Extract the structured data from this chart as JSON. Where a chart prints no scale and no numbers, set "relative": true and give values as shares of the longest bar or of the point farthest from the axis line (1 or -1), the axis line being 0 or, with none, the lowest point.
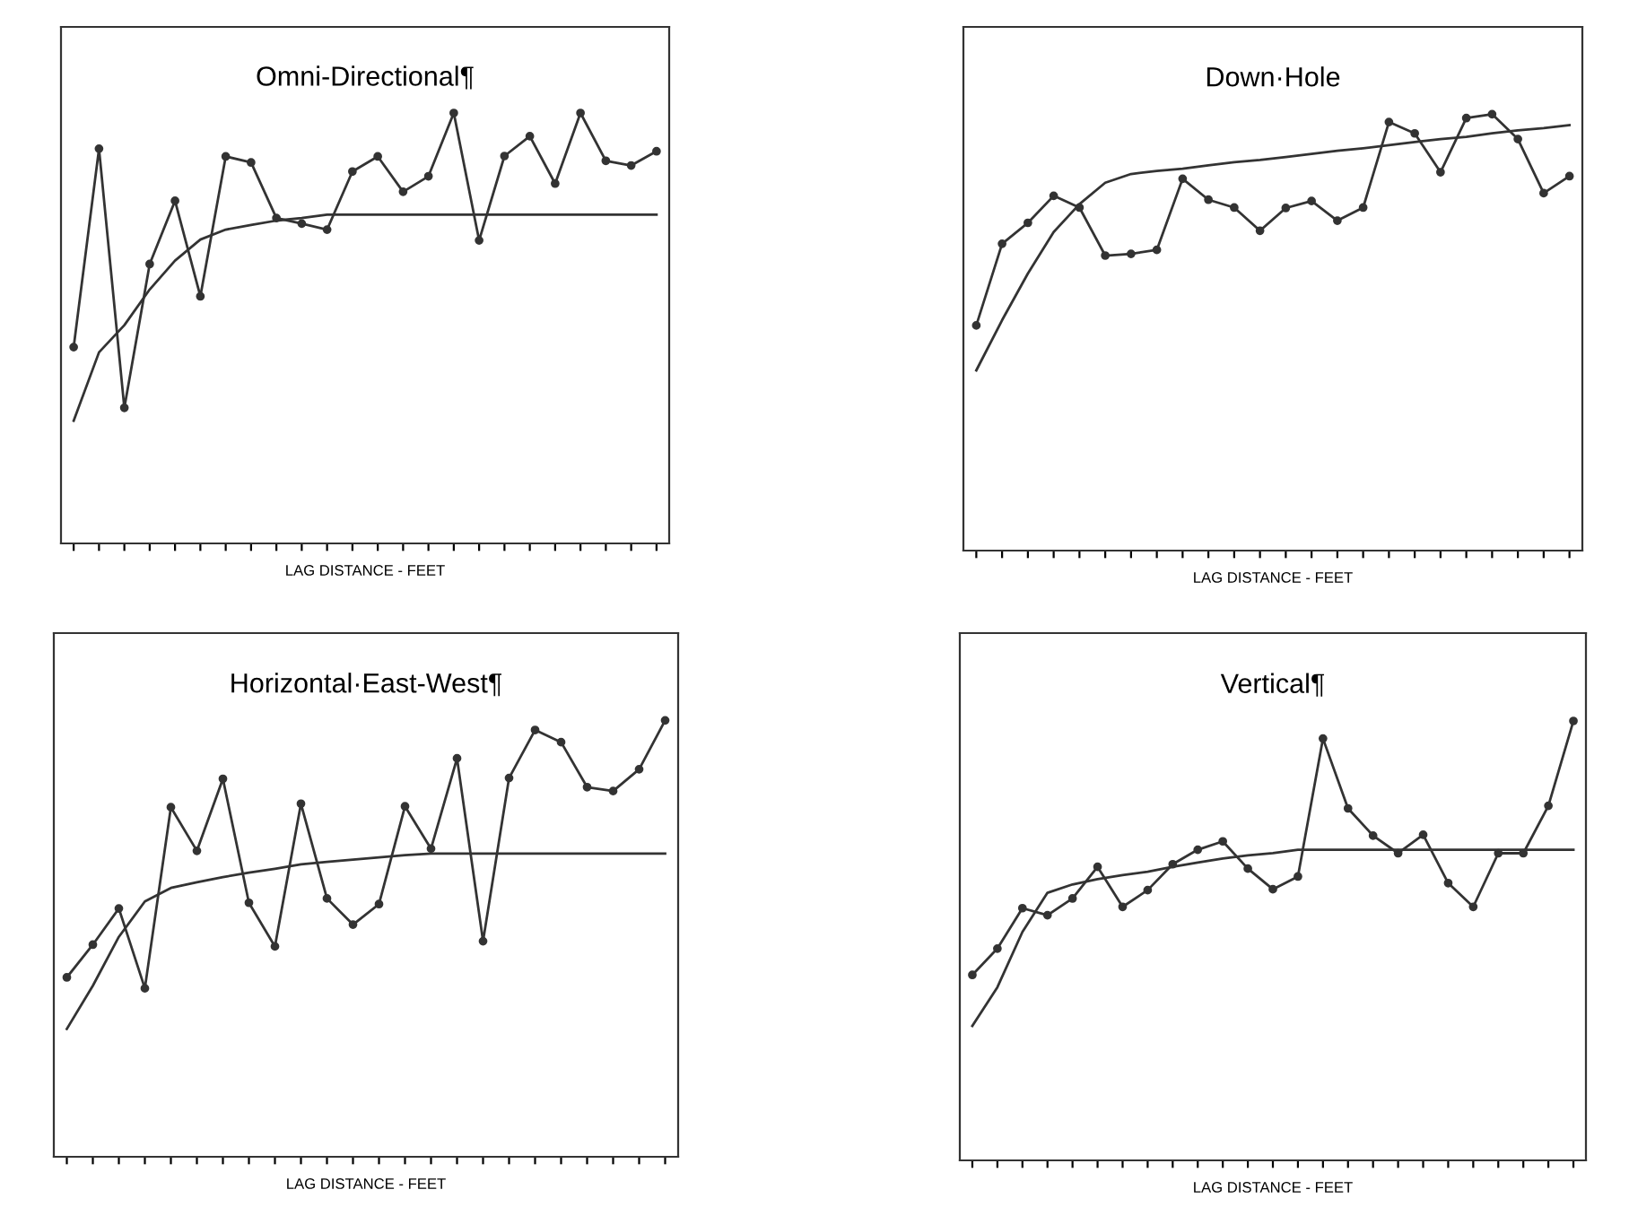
{
  "chart_data": [
    {
      "type": "line",
      "title": "Omni-Directional¶",
      "xlabel": "LAG DISTANCE - FEET",
      "relative": true,
      "categories": [
        null,
        null,
        null,
        null,
        null,
        null,
        null,
        null,
        null,
        null,
        null,
        null,
        null,
        null,
        null,
        null,
        null,
        null,
        null,
        null,
        null,
        null,
        null,
        null
      ],
      "series": [
        {
          "color": "#333333",
          "marker": "circle",
          "values": [
            0.456,
            0.917,
            0.315,
            0.649,
            0.796,
            0.574,
            0.899,
            0.885,
            0.756,
            0.743,
            0.729,
            0.864,
            0.899,
            0.817,
            0.853,
            1,
            0.704,
            0.9,
            0.946,
            0.836,
            1,
            0.889,
            0.878,
            0.911
          ]
        },
        {
          "color": "#333333",
          "marker": "none",
          "values": [
            0.285,
            0.444,
            0.507,
            0.59,
            0.657,
            0.706,
            0.729,
            0.74,
            0.75,
            0.756,
            0.764,
            0.764,
            0.764,
            0.764,
            0.764,
            0.764,
            0.764,
            0.764,
            0.764,
            0.764,
            0.764,
            0.764,
            0.764,
            0.764
          ]
        }
      ]
    },
    {
      "type": "line",
      "title": "Down·Hole",
      "xlabel": "LAG DISTANCE - FEET",
      "relative": true,
      "categories": [
        null,
        null,
        null,
        null,
        null,
        null,
        null,
        null,
        null,
        null,
        null,
        null,
        null,
        null,
        null,
        null,
        null,
        null,
        null,
        null,
        null,
        null,
        null,
        null
      ],
      "series": [
        {
          "color": "#333333",
          "marker": "circle",
          "values": [
            0.516,
            0.703,
            0.751,
            0.813,
            0.786,
            0.676,
            0.68,
            0.689,
            0.852,
            0.804,
            0.786,
            0.733,
            0.785,
            0.801,
            0.756,
            0.786,
            0.982,
            0.956,
            0.867,
            0.991,
            1,
            0.943,
            0.819,
            0.858
          ]
        },
        {
          "color": "#333333",
          "marker": "none",
          "values": [
            0.413,
            0.528,
            0.635,
            0.73,
            0.794,
            0.843,
            0.863,
            0.87,
            0.875,
            0.883,
            0.89,
            0.895,
            0.902,
            0.909,
            0.916,
            0.922,
            0.929,
            0.936,
            0.943,
            0.948,
            0.956,
            0.963,
            0.968,
            0.975
          ]
        }
      ]
    },
    {
      "type": "line",
      "title": "Horizontal·East-West¶",
      "xlabel": "LAG DISTANCE - FEET",
      "relative": true,
      "categories": [
        null,
        null,
        null,
        null,
        null,
        null,
        null,
        null,
        null,
        null,
        null,
        null,
        null,
        null,
        null,
        null,
        null,
        null,
        null,
        null,
        null,
        null,
        null,
        null
      ],
      "series": [
        {
          "color": "#333333",
          "marker": "circle",
          "values": [
            0.411,
            0.486,
            0.569,
            0.386,
            0.801,
            0.701,
            0.866,
            0.582,
            0.482,
            0.809,
            0.592,
            0.532,
            0.579,
            0.803,
            0.706,
            0.913,
            0.494,
            0.868,
            0.978,
            0.95,
            0.847,
            0.838,
            0.888,
            1
          ]
        },
        {
          "color": "#333333",
          "marker": "none",
          "values": [
            0.293,
            0.392,
            0.504,
            0.585,
            0.616,
            0.629,
            0.641,
            0.651,
            0.66,
            0.67,
            0.676,
            0.681,
            0.686,
            0.691,
            0.695,
            0.695,
            0.695,
            0.695,
            0.695,
            0.695,
            0.695,
            0.695,
            0.695,
            0.695
          ]
        }
      ]
    },
    {
      "type": "line",
      "title": "Vertical¶",
      "xlabel": "LAG DISTANCE - FEET",
      "relative": true,
      "categories": [
        null,
        null,
        null,
        null,
        null,
        null,
        null,
        null,
        null,
        null,
        null,
        null,
        null,
        null,
        null,
        null,
        null,
        null,
        null,
        null,
        null,
        null,
        null,
        null,
        null
      ],
      "series": [
        {
          "color": "#333333",
          "marker": "circle",
          "values": [
            0.422,
            0.482,
            0.574,
            0.558,
            0.596,
            0.668,
            0.577,
            0.615,
            0.674,
            0.707,
            0.726,
            0.664,
            0.617,
            0.646,
            0.96,
            0.801,
            0.739,
            0.699,
            0.741,
            0.631,
            0.577,
            0.699,
            0.699,
            0.807,
            1
          ]
        },
        {
          "color": "#333333",
          "marker": "none",
          "values": [
            0.306,
            0.394,
            0.52,
            0.609,
            0.628,
            0.64,
            0.649,
            0.657,
            0.668,
            0.678,
            0.687,
            0.694,
            0.699,
            0.707,
            0.707,
            0.707,
            0.707,
            0.707,
            0.707,
            0.707,
            0.707,
            0.707,
            0.707,
            0.707,
            0.707
          ]
        }
      ]
    }
  ]
}
